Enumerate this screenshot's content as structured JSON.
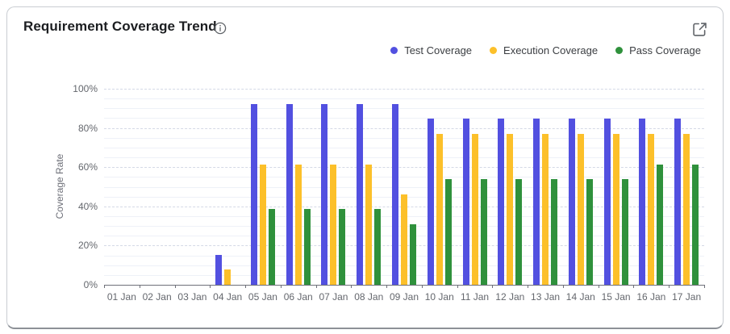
{
  "card": {
    "title": "Requirement Coverage Trend"
  },
  "icons": {
    "info": "info-circle-icon",
    "expand": "external-link-icon"
  },
  "legend": [
    {
      "label": "Test Coverage",
      "color": "#5250e0"
    },
    {
      "label": "Execution Coverage",
      "color": "#fcc02a"
    },
    {
      "label": "Pass Coverage",
      "color": "#2f913c"
    }
  ],
  "chart_data": {
    "type": "bar",
    "title": "Requirement Coverage Trend",
    "xlabel": "",
    "ylabel": "Coverage Rate",
    "ylim": [
      0,
      100
    ],
    "y_ticks": [
      "0%",
      "20%",
      "40%",
      "60%",
      "80%",
      "100%"
    ],
    "grid": "major dashed every 20%, faint minor every 5%",
    "legend_position": "top-right",
    "categories": [
      "01 Jan",
      "02 Jan",
      "03 Jan",
      "04 Jan",
      "05 Jan",
      "06 Jan",
      "07 Jan",
      "08 Jan",
      "09 Jan",
      "10 Jan",
      "11 Jan",
      "12 Jan",
      "13 Jan",
      "14 Jan",
      "15 Jan",
      "16 Jan",
      "17 Jan"
    ],
    "series": [
      {
        "name": "Test Coverage",
        "color": "#5250e0",
        "values": [
          0,
          0,
          0,
          15.4,
          92.3,
          92.3,
          92.3,
          92.3,
          92.3,
          84.6,
          84.6,
          84.6,
          84.6,
          84.6,
          84.6,
          84.6,
          84.6
        ]
      },
      {
        "name": "Execution Coverage",
        "color": "#fcc02a",
        "values": [
          0,
          0,
          0,
          7.7,
          61.5,
          61.5,
          61.5,
          61.5,
          46.2,
          76.9,
          76.9,
          76.9,
          76.9,
          76.9,
          76.9,
          76.9,
          76.9
        ]
      },
      {
        "name": "Pass Coverage",
        "color": "#2f913c",
        "values": [
          0,
          0,
          0,
          0,
          38.5,
          38.5,
          38.5,
          38.5,
          30.8,
          53.8,
          53.8,
          53.8,
          53.8,
          53.8,
          53.8,
          61.5,
          61.5
        ]
      }
    ]
  }
}
